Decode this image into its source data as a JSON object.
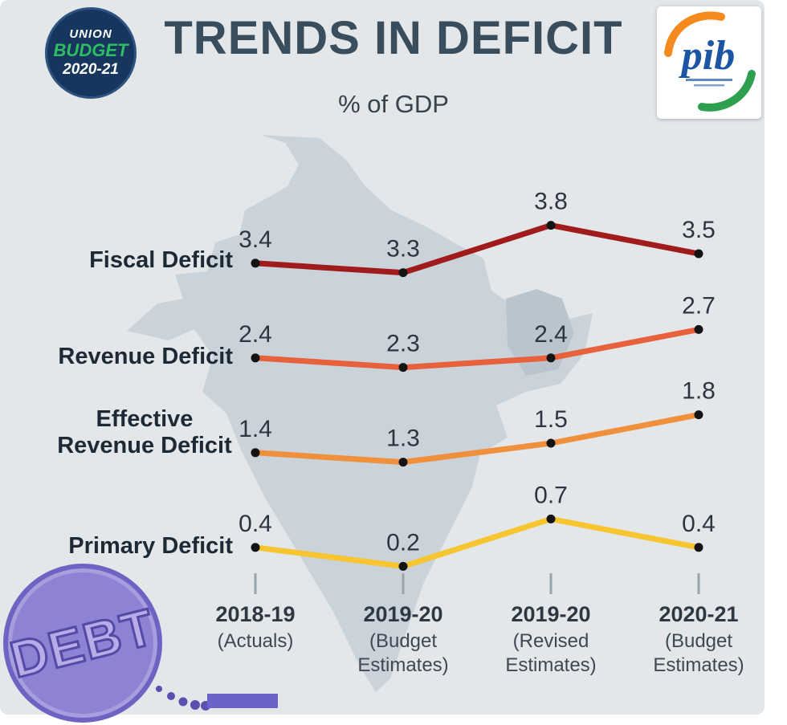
{
  "header": {
    "badge": {
      "line1": "UNION",
      "line2": "BUDGET",
      "line3": "2020-21"
    },
    "title": "TRENDS IN DEFICIT",
    "subtitle": "% of GDP",
    "pib_text": "pib"
  },
  "chart_data": {
    "type": "line",
    "title": "TRENDS IN DEFICIT",
    "unit": "% of GDP",
    "categories": [
      {
        "year": "2018-19",
        "label": "(Actuals)"
      },
      {
        "year": "2019-20",
        "label": "(Budget Estimates)"
      },
      {
        "year": "2019-20",
        "label": "(Revised Estimates)"
      },
      {
        "year": "2020-21",
        "label": "(Budget Estimates)"
      }
    ],
    "series": [
      {
        "name": "Fiscal Deficit",
        "color": "#a01c1c",
        "values": [
          3.4,
          3.3,
          3.8,
          3.5
        ]
      },
      {
        "name": "Revenue Deficit",
        "color": "#e8613d",
        "values": [
          2.4,
          2.3,
          2.4,
          2.7
        ]
      },
      {
        "name": "Effective Revenue Deficit",
        "color": "#f08f3c",
        "values": [
          1.4,
          1.3,
          1.5,
          1.8
        ]
      },
      {
        "name": "Primary Deficit",
        "color": "#f6c52f",
        "values": [
          0.4,
          0.2,
          0.7,
          0.4
        ]
      }
    ],
    "marker_color": "#141414",
    "value_label_color": "#2d3540",
    "grid": false,
    "legend_position": "left-row-labels"
  },
  "footer_badge": {
    "text": "DEBT"
  }
}
